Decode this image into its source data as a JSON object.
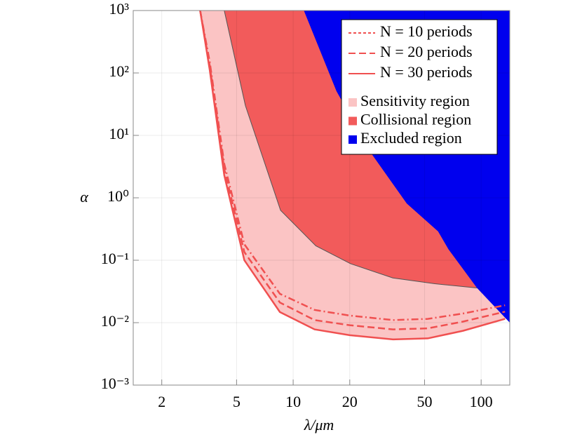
{
  "chart_data": {
    "type": "line",
    "x_label": "λ/μm",
    "y_label": "α",
    "log_x": true,
    "log_y": true,
    "grid": true,
    "legend": "upper right",
    "xlim": [
      1.41,
      142
    ],
    "ylim": [
      0.001,
      1000
    ],
    "xticks": [
      2,
      5,
      10,
      20,
      50,
      100
    ],
    "yticks": [
      {
        "value": 0.001,
        "label": "10⁻³"
      },
      {
        "value": 0.01,
        "label": "10⁻²"
      },
      {
        "value": 0.1,
        "label": "10⁻¹"
      },
      {
        "value": 1,
        "label": "10⁰"
      },
      {
        "value": 10,
        "label": "10¹"
      },
      {
        "value": 100,
        "label": "10²"
      },
      {
        "value": 1000,
        "label": "10³"
      }
    ],
    "x": [
      3.2,
      3.6,
      4.3,
      5.5,
      8.5,
      13,
      20,
      34,
      52,
      80,
      134
    ],
    "series": [
      {
        "name": "N = 10 periods",
        "color": "#f05050",
        "dash": "dotted",
        "values": [
          1000,
          150,
          3.5,
          0.18,
          0.029,
          0.016,
          0.013,
          0.011,
          0.0115,
          0.014,
          0.019
        ]
      },
      {
        "name": "N = 20 periods",
        "color": "#f05050",
        "dash": "dashed",
        "values": [
          1000,
          130,
          2.9,
          0.135,
          0.021,
          0.011,
          0.0091,
          0.0078,
          0.0081,
          0.0104,
          0.015
        ]
      },
      {
        "name": "N = 30 periods",
        "color": "#f05050",
        "dash": "solid",
        "values": [
          1000,
          111,
          2.3,
          0.1,
          0.0148,
          0.0078,
          0.0063,
          0.0054,
          0.0056,
          0.0074,
          0.0115
        ]
      }
    ],
    "regions": [
      {
        "name": "Sensitivity region",
        "color": "#fbc4c4",
        "x": [
          3.2,
          3.6,
          4.3,
          5.5,
          8.5,
          13,
          20,
          34,
          52,
          80,
          134
        ],
        "values": [
          1000,
          111,
          2.3,
          0.1,
          0.0148,
          0.0078,
          0.0063,
          0.0054,
          0.0056,
          0.0074,
          0.0115
        ]
      },
      {
        "name": "Collisional region",
        "color": "#f25b5b",
        "x": [
          4.3,
          5.57,
          8.57,
          13.2,
          20.2,
          33.9,
          56.7,
          95
        ],
        "values": [
          1000,
          30,
          0.63,
          0.17,
          0.088,
          0.052,
          0.042,
          0.036
        ]
      },
      {
        "name": "Excluded region",
        "color": "#0000ee",
        "x": [
          11.4,
          17,
          26.2,
          40.2,
          59,
          67,
          95,
          142
        ],
        "values": [
          1000,
          51,
          5,
          0.81,
          0.29,
          0.15,
          0.036,
          0.01
        ]
      }
    ]
  }
}
